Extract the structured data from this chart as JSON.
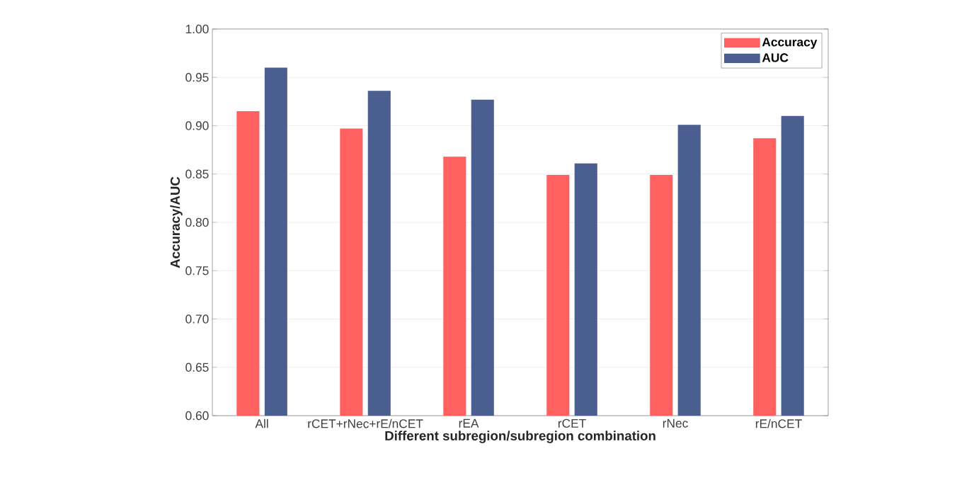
{
  "chart_data": {
    "type": "bar",
    "xlabel": "Different subregion/subregion combination",
    "ylabel": "Accuracy/AUC",
    "categories": [
      "All",
      "rCET+rNec+rE/nCET",
      "rEA",
      "rCET",
      "rNec",
      "rE/nCET"
    ],
    "series": [
      {
        "name": "Accuracy",
        "color": "#ff6161",
        "values": [
          0.915,
          0.897,
          0.868,
          0.849,
          0.849,
          0.887
        ]
      },
      {
        "name": "AUC",
        "color": "#4a5e8f",
        "values": [
          0.96,
          0.936,
          0.927,
          0.861,
          0.901,
          0.91
        ]
      }
    ],
    "ylim": [
      0.6,
      1.0
    ],
    "yticks": [
      {
        "value": 0.6,
        "label": "0.60"
      },
      {
        "value": 0.65,
        "label": "0.65"
      },
      {
        "value": 0.7,
        "label": "0.70"
      },
      {
        "value": 0.75,
        "label": "0.75"
      },
      {
        "value": 0.8,
        "label": "0.80"
      },
      {
        "value": 0.85,
        "label": "0.85"
      },
      {
        "value": 0.9,
        "label": "0.90"
      },
      {
        "value": 0.95,
        "label": "0.95"
      },
      {
        "value": 1.0,
        "label": "1.00"
      }
    ],
    "grid": "y",
    "legend": "top right"
  }
}
